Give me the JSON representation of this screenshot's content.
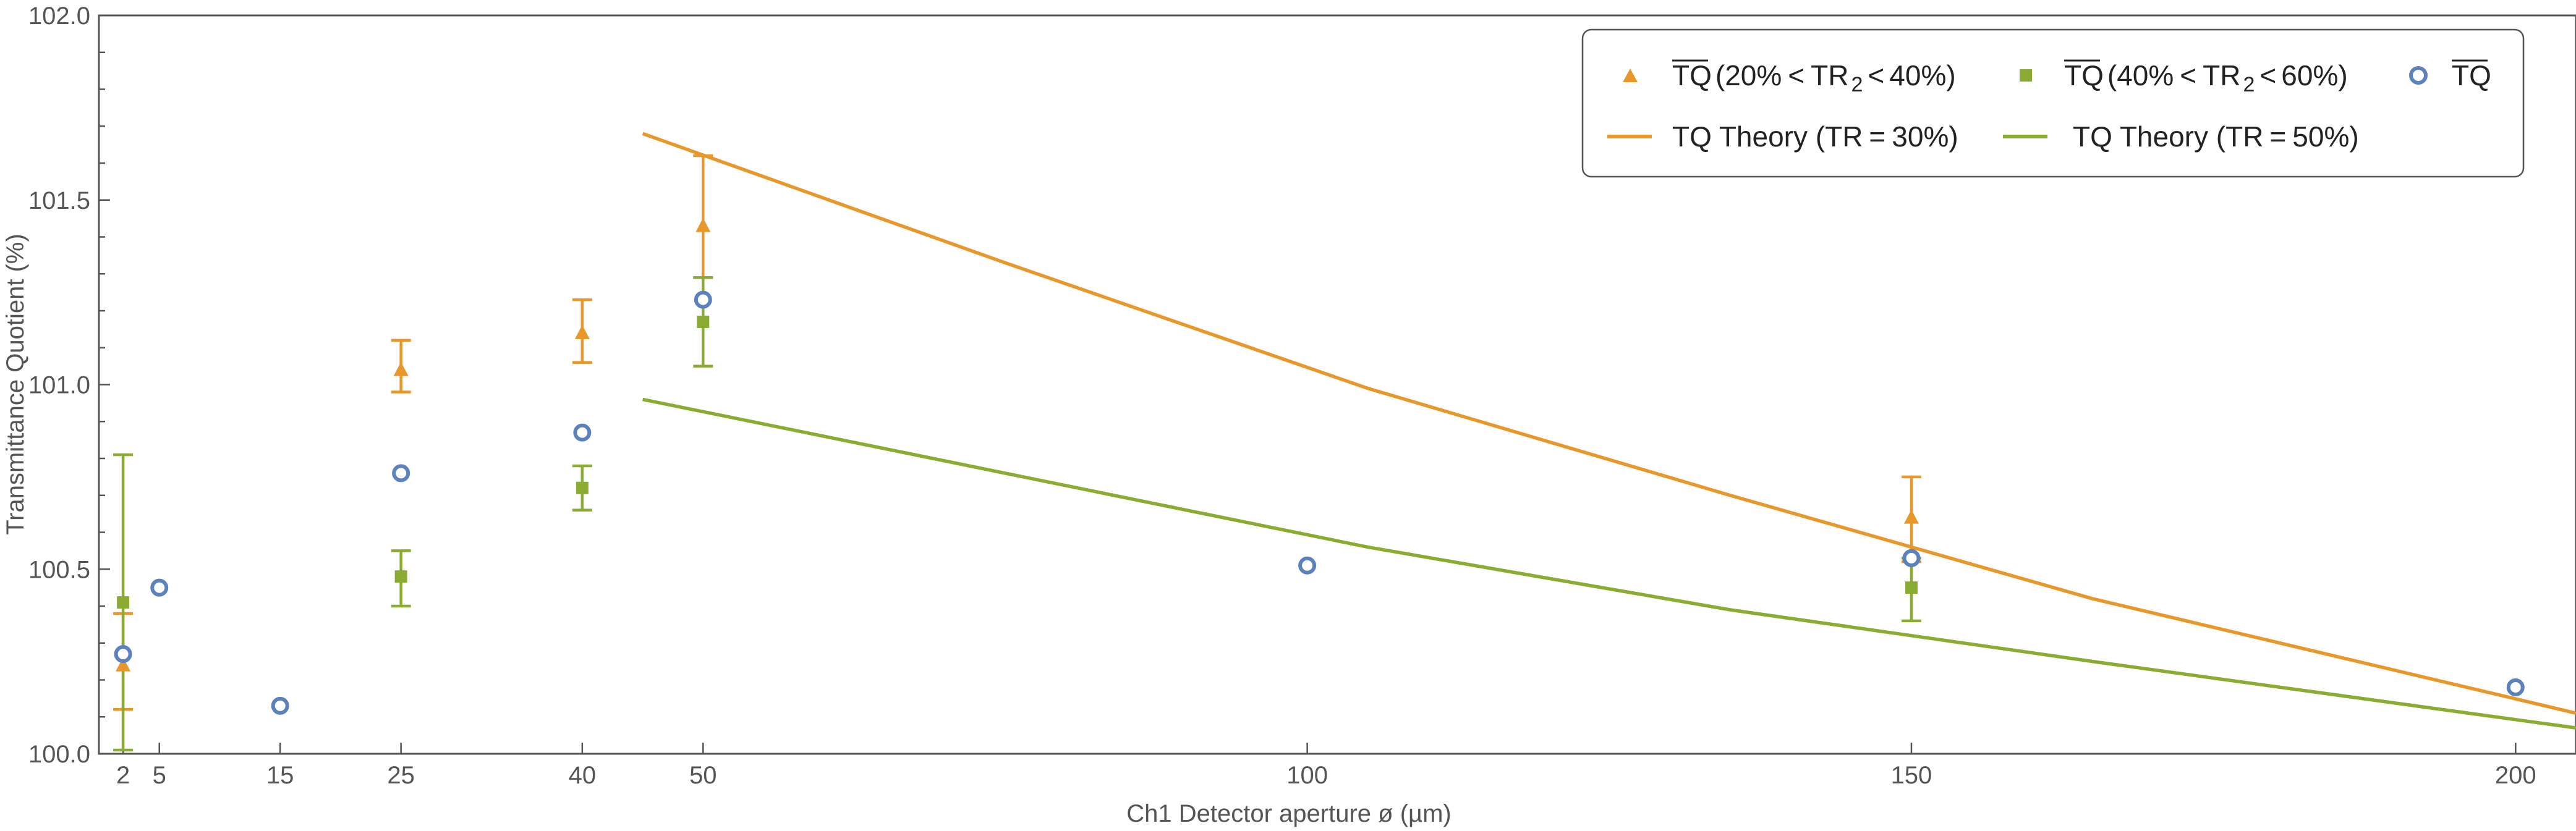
{
  "chart_data": {
    "type": "scatter",
    "title": "",
    "xlabel": "Ch1 Detector aperture ø (µm)",
    "ylabel": "Transmittance Quotient (%)",
    "xlim": [
      0,
      205
    ],
    "ylim": [
      100.0,
      102.0
    ],
    "x_ticks": [
      2,
      5,
      15,
      25,
      40,
      50,
      100,
      150,
      200
    ],
    "y_ticks": [
      100.0,
      100.5,
      101.0,
      101.5,
      102.0
    ],
    "y_tick_labels": [
      "100.0",
      "100.5",
      "101.0",
      "101.5",
      "102.0"
    ],
    "grid": false,
    "legend_position": "top-right",
    "colors": {
      "orange": "#e8972a",
      "green": "#8aac32",
      "blue": "#5b82bd",
      "axis": "#555555"
    },
    "series": [
      {
        "name": "TQ (20% < TR2 < 40%)",
        "legend_main": "TQ",
        "legend_pre": "(20%",
        "legend_lt1": "<",
        "legend_tr": "TR",
        "legend_sub": "2",
        "legend_lt2": "<",
        "legend_post": "40%)",
        "marker": "triangle",
        "color": "#e8972a",
        "points": [
          {
            "x": 2,
            "y": 100.24,
            "err_low": 100.12,
            "err_high": 100.38
          },
          {
            "x": 25,
            "y": 101.04,
            "err_low": 100.98,
            "err_high": 101.12
          },
          {
            "x": 40,
            "y": 101.14,
            "err_low": 101.06,
            "err_high": 101.23
          },
          {
            "x": 50,
            "y": 101.43,
            "err_low": 101.29,
            "err_high": 101.62
          },
          {
            "x": 150,
            "y": 100.64,
            "err_low": 100.52,
            "err_high": 100.75
          }
        ]
      },
      {
        "name": "TQ (40% < TR2 < 60%)",
        "legend_main": "TQ",
        "legend_pre": "(40%",
        "legend_lt1": "<",
        "legend_tr": "TR",
        "legend_sub": "2",
        "legend_lt2": "<",
        "legend_post": "60%)",
        "marker": "square",
        "color": "#8aac32",
        "points": [
          {
            "x": 2,
            "y": 100.41,
            "err_low": 100.01,
            "err_high": 100.81
          },
          {
            "x": 25,
            "y": 100.48,
            "err_low": 100.4,
            "err_high": 100.55
          },
          {
            "x": 40,
            "y": 100.72,
            "err_low": 100.66,
            "err_high": 100.78
          },
          {
            "x": 50,
            "y": 101.17,
            "err_low": 101.05,
            "err_high": 101.29
          },
          {
            "x": 150,
            "y": 100.45,
            "err_low": 100.36,
            "err_high": 100.53
          }
        ]
      },
      {
        "name": "TQ",
        "legend_main": "TQ",
        "marker": "circle",
        "color": "#5b82bd",
        "points": [
          {
            "x": 2,
            "y": 100.27
          },
          {
            "x": 5,
            "y": 100.45
          },
          {
            "x": 15,
            "y": 100.13
          },
          {
            "x": 25,
            "y": 100.76
          },
          {
            "x": 40,
            "y": 100.87
          },
          {
            "x": 50,
            "y": 101.23
          },
          {
            "x": 100,
            "y": 100.51
          },
          {
            "x": 150,
            "y": 100.53
          },
          {
            "x": 200,
            "y": 100.18
          }
        ]
      }
    ],
    "lines": [
      {
        "name": "TQ Theory (TR = 30%)",
        "legend_prefix": "TQ Theory (TR",
        "legend_eq": "=",
        "legend_suffix": "30%)",
        "color": "#e8972a",
        "x": [
          45,
          75,
          105,
          135,
          165,
          205
        ],
        "y": [
          101.68,
          101.33,
          100.99,
          100.7,
          100.42,
          100.11
        ]
      },
      {
        "name": "TQ Theory (TR = 50%)",
        "legend_prefix": "TQ Theory (TR",
        "legend_eq": "=",
        "legend_suffix": "50%)",
        "color": "#8aac32",
        "x": [
          45,
          75,
          105,
          135,
          165,
          205
        ],
        "y": [
          100.96,
          100.76,
          100.56,
          100.39,
          100.25,
          100.07
        ]
      }
    ]
  }
}
